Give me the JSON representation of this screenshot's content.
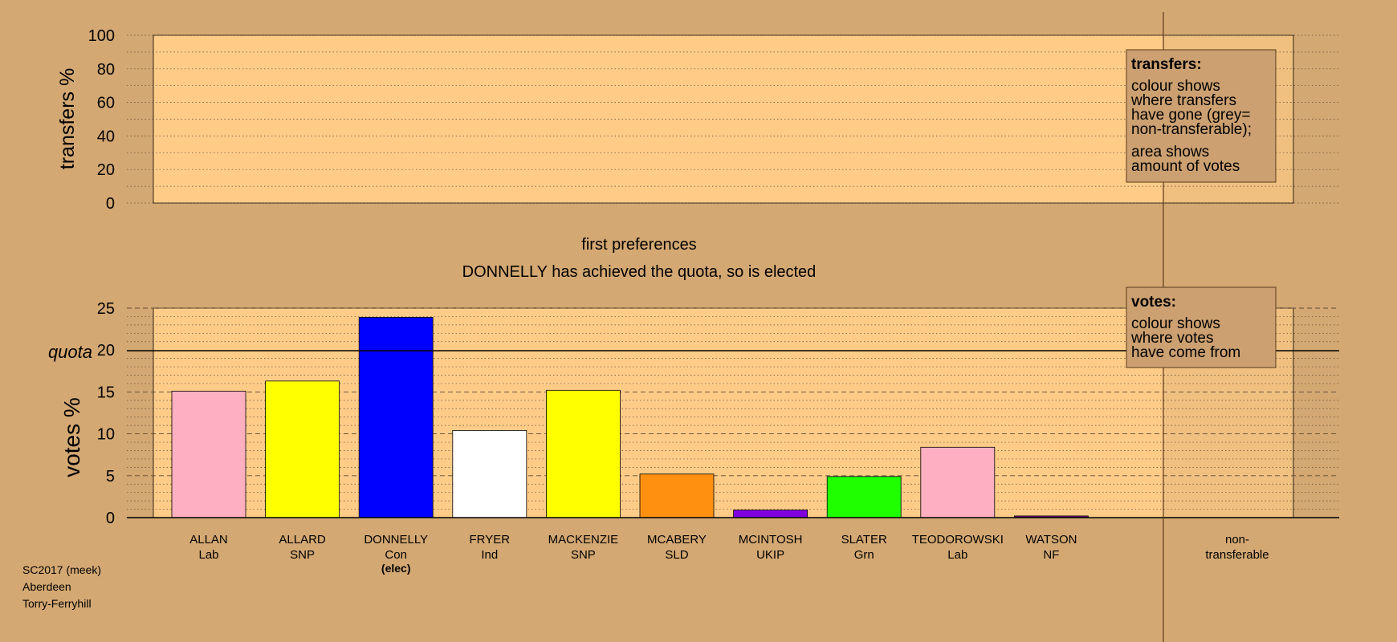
{
  "colors": {
    "page_bg": "#D4A872",
    "panel_bg": "#FFCC88",
    "legend_bg": "#CCA070",
    "quota_line": "#000000"
  },
  "transfers_panel": {
    "ylabel": "transfers %",
    "yticks": [
      "0",
      "20",
      "40",
      "60",
      "80",
      "100"
    ],
    "legend_title": "transfers:",
    "legend_lines_1": [
      "colour shows",
      "where transfers",
      "have gone (grey=",
      "non-transferable);"
    ],
    "legend_lines_2": [
      "area shows",
      "amount of votes"
    ]
  },
  "stage_title": "first preferences",
  "stage_subtitle": "DONNELLY has achieved the quota, so is elected",
  "votes_panel": {
    "ylabel": "votes %",
    "yticks": [
      "0",
      "5",
      "10",
      "15",
      "20",
      "25"
    ],
    "quota_label": "quota",
    "legend_title": "votes:",
    "legend_lines": [
      "colour shows",
      "where votes",
      "have come from"
    ]
  },
  "non_transferable_label": [
    "non-",
    "transferable"
  ],
  "footer": [
    "SC2017 (meek)",
    "Aberdeen",
    "Torry-Ferryhill"
  ],
  "chart_data": {
    "type": "bar",
    "title": "first preferences",
    "ylabel": "votes %",
    "ylim": [
      0,
      25
    ],
    "quota": 20,
    "grid": true,
    "categories": [
      "ALLAN",
      "ALLARD",
      "DONNELLY",
      "FRYER",
      "MACKENZIE",
      "MCABERY",
      "MCINTOSH",
      "SLATER",
      "TEODOROWSKI",
      "WATSON"
    ],
    "parties": [
      "Lab",
      "SNP",
      "Con",
      "Ind",
      "SNP",
      "SLD",
      "UKIP",
      "Grn",
      "Lab",
      "NF"
    ],
    "status": [
      "",
      "",
      "(elec)",
      "",
      "",
      "",
      "",
      "",
      "",
      ""
    ],
    "values": [
      15.1,
      16.3,
      23.9,
      10.4,
      15.2,
      5.2,
      0.9,
      4.9,
      8.4,
      0.2
    ],
    "bar_colors": [
      "#FFB0C0",
      "#FFFF00",
      "#0000FF",
      "#FFFFFF",
      "#FFFF00",
      "#FF9010",
      "#8000E0",
      "#20FF00",
      "#FFB0C0",
      "#800080"
    ],
    "transfers_ylim": [
      0,
      100
    ],
    "non_transferable": 0
  }
}
